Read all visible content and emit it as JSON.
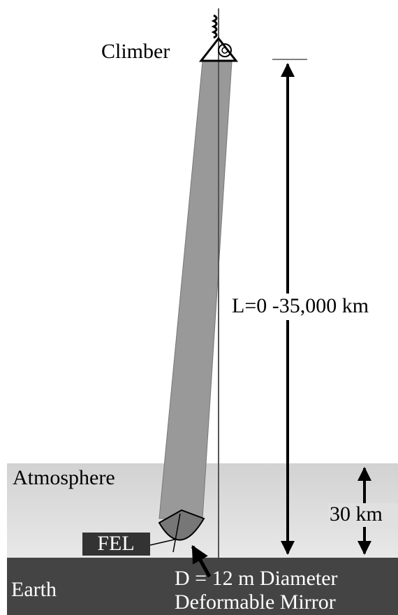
{
  "labels": {
    "climber": "Climber",
    "length": "L=0 -35,000 km",
    "atmosphere": "Atmosphere",
    "height": "30 km",
    "fel": "FEL",
    "earth": "Earth",
    "mirror_line1": "D = 12 m Diameter",
    "mirror_line2": "Deformable Mirror"
  }
}
